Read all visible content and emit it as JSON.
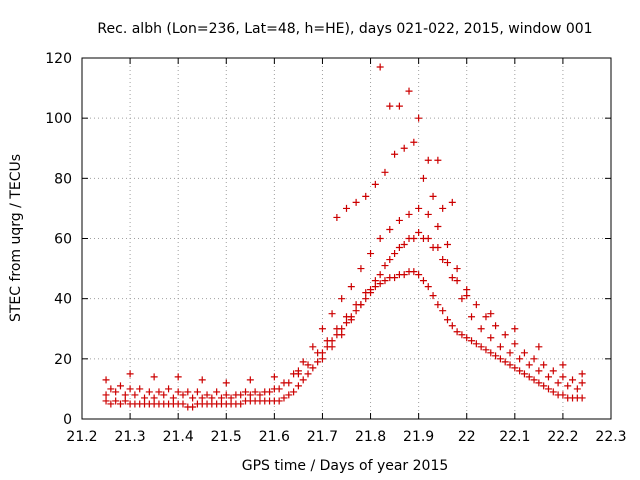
{
  "chart_data": {
    "type": "scatter",
    "title": "Rec. albh (Lon=236, Lat=48, h=HE), days 021-022, 2015, window 001",
    "xlabel": "GPS time / Days of year 2015",
    "ylabel": "STEC from uqrg / TECUs",
    "xlim": [
      21.2,
      22.3
    ],
    "ylim": [
      0,
      120
    ],
    "xticks": [
      "21.2",
      "21.3",
      "21.4",
      "21.5",
      "21.6",
      "21.7",
      "21.8",
      "21.9",
      "22",
      "22.1",
      "22.2",
      "22.3"
    ],
    "yticks": [
      "0",
      "20",
      "40",
      "60",
      "80",
      "100",
      "120"
    ],
    "grid": true,
    "marker": "+",
    "marker_color": "#cc0000",
    "series": [
      {
        "name": "STEC",
        "x": [
          21.25,
          21.26,
          21.27,
          21.28,
          21.29,
          21.3,
          21.31,
          21.32,
          21.33,
          21.34,
          21.35,
          21.36,
          21.37,
          21.38,
          21.39,
          21.4,
          21.41,
          21.42,
          21.43,
          21.44,
          21.45,
          21.46,
          21.47,
          21.48,
          21.49,
          21.5,
          21.51,
          21.52,
          21.53,
          21.54,
          21.55,
          21.56,
          21.57,
          21.58,
          21.59,
          21.6,
          21.61,
          21.62,
          21.63,
          21.64,
          21.65,
          21.66,
          21.67,
          21.68,
          21.69,
          21.7,
          21.71,
          21.72,
          21.73,
          21.74,
          21.75,
          21.76,
          21.77,
          21.78,
          21.79,
          21.8,
          21.81,
          21.82,
          21.83,
          21.84,
          21.85,
          21.86,
          21.87,
          21.88,
          21.89,
          21.9,
          21.91,
          21.92,
          21.93,
          21.94,
          21.95,
          21.96,
          21.97,
          21.98,
          21.99,
          22.0,
          22.01,
          22.02,
          22.03,
          22.04,
          22.05,
          22.06,
          22.07,
          22.08,
          22.09,
          22.1,
          22.11,
          22.12,
          22.13,
          22.14,
          22.15,
          22.16,
          22.17,
          22.18,
          22.19,
          22.2,
          22.21,
          22.22,
          22.23,
          22.24,
          21.25,
          21.27,
          21.29,
          21.31,
          21.33,
          21.35,
          21.37,
          21.39,
          21.41,
          21.43,
          21.45,
          21.47,
          21.49,
          21.51,
          21.53,
          21.55,
          21.57,
          21.59,
          21.61,
          21.63,
          21.65,
          21.67,
          21.69,
          21.71,
          21.73,
          21.75,
          21.77,
          21.79,
          21.81,
          21.83,
          21.85,
          21.87,
          21.89,
          21.91,
          21.93,
          21.95,
          21.97,
          21.99,
          22.01,
          22.03,
          22.05,
          22.07,
          22.09,
          22.11,
          22.13,
          22.15,
          22.17,
          22.19,
          22.21,
          22.23,
          21.26,
          21.28,
          21.3,
          21.32,
          21.34,
          21.36,
          21.38,
          21.4,
          21.42,
          21.44,
          21.46,
          21.48,
          21.5,
          21.52,
          21.54,
          21.56,
          21.58,
          21.6,
          21.62,
          21.64,
          21.66,
          21.68,
          21.7,
          21.72,
          21.74,
          21.76,
          21.78,
          21.8,
          21.82,
          21.84,
          21.86,
          21.88,
          21.9,
          21.92,
          21.94,
          21.96,
          21.98,
          22.0,
          22.02,
          22.04,
          22.06,
          22.08,
          22.1,
          22.12,
          22.14,
          22.16,
          22.18,
          22.2,
          22.22,
          22.24,
          21.25,
          21.3,
          21.35,
          21.4,
          21.45,
          21.5,
          21.55,
          21.6,
          21.65,
          21.7,
          21.72,
          21.74,
          21.76,
          21.78,
          21.8,
          21.82,
          21.84,
          21.86,
          21.88,
          21.9,
          21.92,
          21.94,
          21.96,
          21.98,
          22.0,
          22.05,
          22.1,
          22.15,
          22.2,
          22.24,
          21.73,
          21.75,
          21.77,
          21.79,
          21.81,
          21.83,
          21.85,
          21.87,
          21.89,
          21.91,
          21.93,
          21.95,
          21.97,
          21.82,
          21.84,
          21.86,
          21.88,
          21.9,
          21.92,
          21.94
        ],
        "y": [
          6,
          5,
          6,
          5,
          6,
          5,
          5,
          5,
          5,
          5,
          5,
          5,
          5,
          5,
          5,
          5,
          5,
          4,
          4,
          5,
          5,
          5,
          5,
          5,
          5,
          5,
          5,
          5,
          5,
          6,
          6,
          6,
          6,
          6,
          6,
          6,
          6,
          7,
          8,
          9,
          11,
          13,
          15,
          17,
          19,
          22,
          24,
          26,
          28,
          30,
          32,
          34,
          36,
          38,
          40,
          42,
          44,
          45,
          46,
          47,
          47,
          48,
          48,
          49,
          49,
          48,
          46,
          44,
          41,
          38,
          36,
          33,
          31,
          29,
          28,
          27,
          26,
          25,
          24,
          23,
          22,
          21,
          20,
          19,
          18,
          17,
          16,
          15,
          14,
          13,
          12,
          11,
          10,
          9,
          8,
          8,
          7,
          7,
          7,
          7,
          8,
          9,
          8,
          8,
          7,
          7,
          8,
          7,
          8,
          7,
          7,
          7,
          7,
          7,
          8,
          8,
          8,
          9,
          10,
          12,
          15,
          18,
          22,
          26,
          30,
          34,
          38,
          42,
          46,
          51,
          55,
          58,
          60,
          60,
          57,
          53,
          47,
          40,
          34,
          30,
          27,
          24,
          22,
          20,
          18,
          16,
          14,
          12,
          11,
          10,
          10,
          11,
          10,
          10,
          9,
          9,
          10,
          9,
          9,
          9,
          8,
          9,
          8,
          8,
          9,
          9,
          9,
          10,
          12,
          15,
          19,
          24,
          30,
          35,
          40,
          44,
          50,
          55,
          60,
          63,
          66,
          68,
          70,
          68,
          64,
          58,
          50,
          43,
          38,
          34,
          31,
          28,
          25,
          22,
          20,
          18,
          16,
          14,
          13,
          12,
          13,
          15,
          14,
          14,
          13,
          12,
          13,
          14,
          16,
          20,
          24,
          28,
          33,
          38,
          43,
          48,
          53,
          57,
          60,
          62,
          60,
          57,
          52,
          46,
          41,
          35,
          30,
          24,
          18,
          15,
          67,
          70,
          72,
          74,
          78,
          82,
          88,
          90,
          92,
          80,
          74,
          70,
          72,
          117,
          104,
          104,
          109,
          100,
          86,
          86
        ]
      }
    ]
  }
}
